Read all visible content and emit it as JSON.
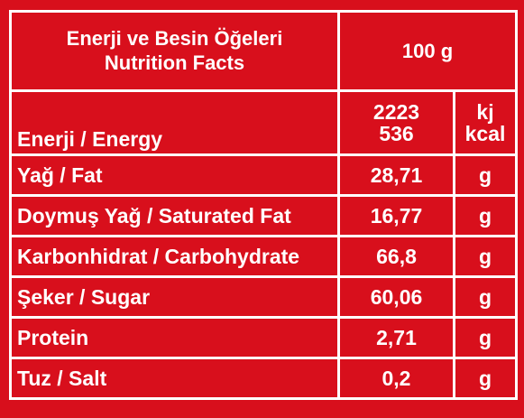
{
  "header": {
    "title_tr": "Enerji ve Besin Öğeleri",
    "title_en": "Nutrition Facts",
    "amount": "100 g"
  },
  "energy": {
    "label": "Enerji / Energy",
    "value_kj": "2223",
    "value_kcal": "536",
    "unit_kj": "kj",
    "unit_kcal": "kcal"
  },
  "rows": [
    {
      "label": "Yağ / Fat",
      "value": "28,71",
      "unit": "g"
    },
    {
      "label": "Doymuş Yağ / Saturated Fat",
      "value": "16,77",
      "unit": "g"
    },
    {
      "label": "Karbonhidrat / Carbohydrate",
      "value": "66,8",
      "unit": "g"
    },
    {
      "label": "Şeker / Sugar",
      "value": "60,06",
      "unit": "g"
    },
    {
      "label": "Protein",
      "value": "2,71",
      "unit": "g"
    },
    {
      "label": "Tuz / Salt",
      "value": "0,2",
      "unit": "g"
    }
  ],
  "colors": {
    "background": "#d80f1c",
    "foreground": "#ffffff"
  }
}
